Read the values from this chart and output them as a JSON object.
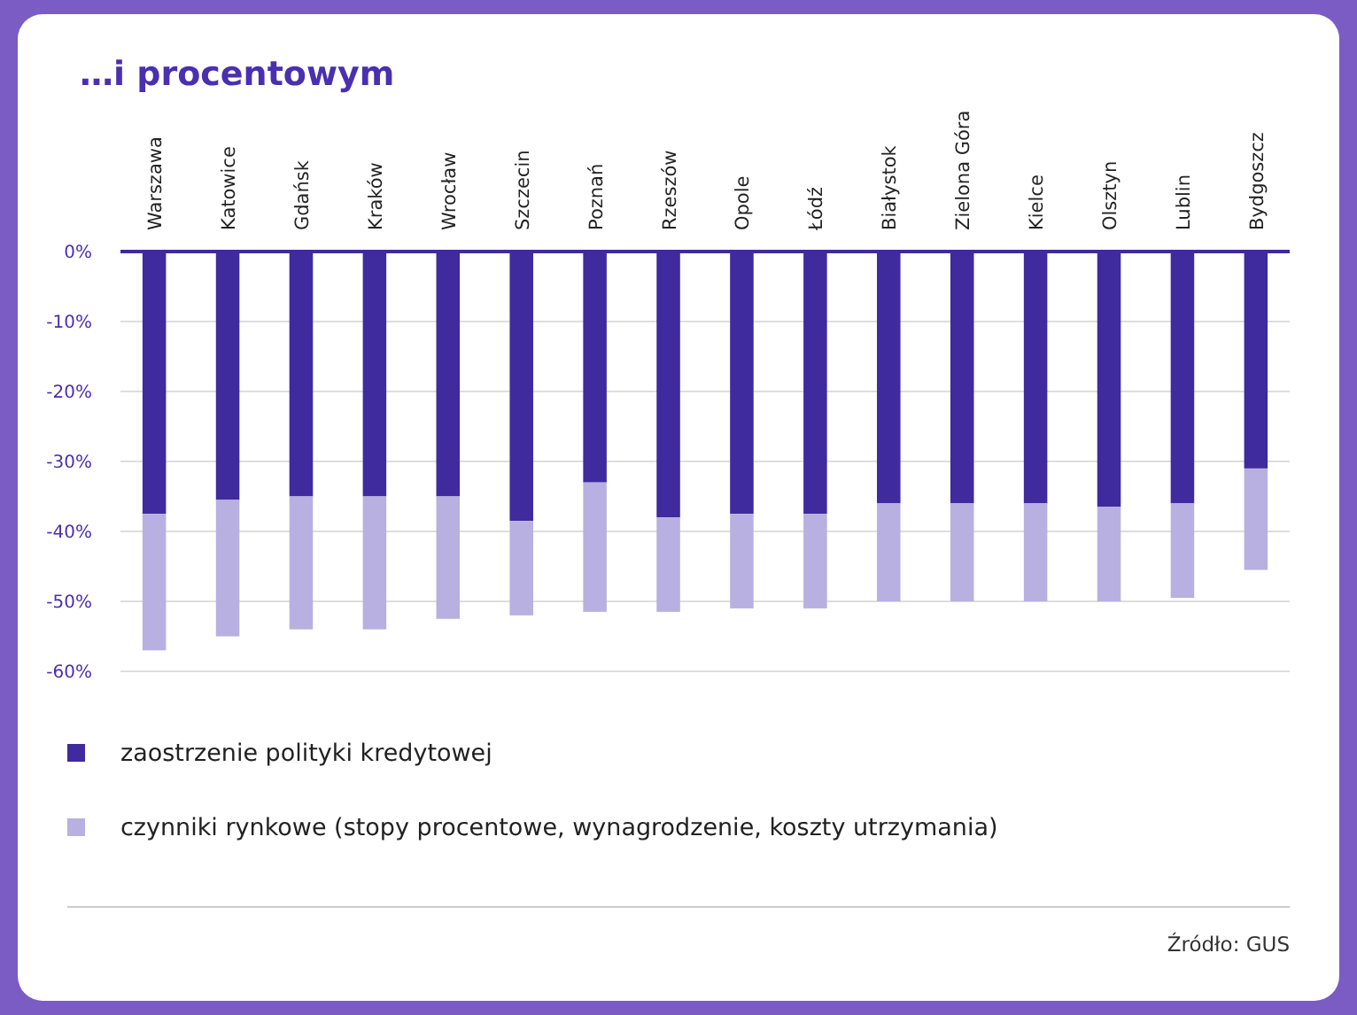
{
  "chart_data": {
    "type": "bar",
    "title": "…i procentowym",
    "stacked": true,
    "categories": [
      "Warszawa",
      "Katowice",
      "Gdańsk",
      "Kraków",
      "Wrocław",
      "Szczecin",
      "Poznań",
      "Rzeszów",
      "Opole",
      "Łódź",
      "Białystok",
      "Zielona Góra",
      "Kielce",
      "Olsztyn",
      "Lublin",
      "Bydgoszcz"
    ],
    "series": [
      {
        "name": "zaostrzenie polityki kredytowej",
        "color": "#3f2a9e",
        "values": [
          -37.5,
          -35.5,
          -35,
          -35,
          -35,
          -38.5,
          -33,
          -38,
          -37.5,
          -37.5,
          -36,
          -36,
          -36,
          -36.5,
          -36,
          -31
        ]
      },
      {
        "name": "czynniki rynkowe (stopy procentowe, wynagrodzenie, koszty utrzymania)",
        "color": "#b8b0e0",
        "values": [
          -19.5,
          -19.5,
          -19,
          -19,
          -17.5,
          -13.5,
          -18.5,
          -13.5,
          -13.5,
          -13.5,
          -14,
          -14,
          -14,
          -13.5,
          -13.5,
          -14.5
        ]
      }
    ],
    "ylim": [
      -60,
      0
    ],
    "yticks": [
      {
        "value": 0,
        "label": "0%"
      },
      {
        "value": -10,
        "label": "-10%"
      },
      {
        "value": -20,
        "label": "-20%"
      },
      {
        "value": -30,
        "label": "-30%"
      },
      {
        "value": -40,
        "label": "-40%"
      },
      {
        "value": -50,
        "label": "-50%"
      },
      {
        "value": -60,
        "label": "-60%"
      }
    ],
    "grid": "y",
    "legend": "bottom",
    "annotations": [
      "Źródło: GUS"
    ]
  }
}
